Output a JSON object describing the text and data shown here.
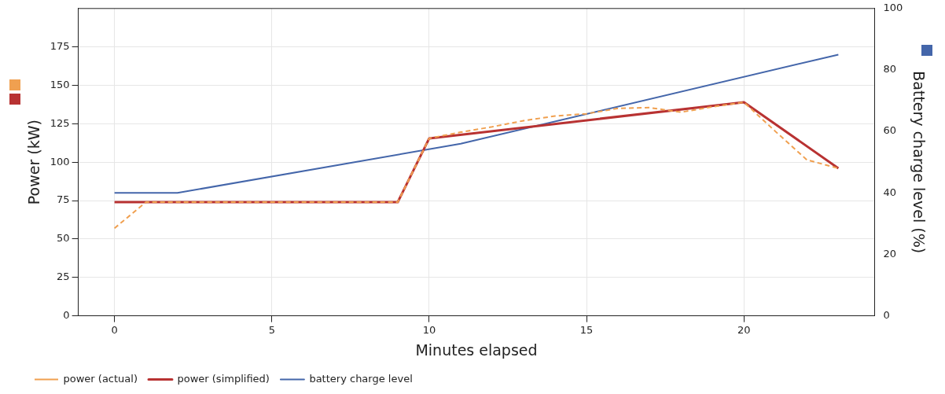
{
  "chart_data": {
    "type": "line",
    "xlabel": "Minutes elapsed",
    "ylabel": "Power (kW)",
    "y2label": "Battery charge level (%)",
    "xlim": [
      -1.15,
      24.15
    ],
    "xticks": [
      0,
      5,
      10,
      15,
      20
    ],
    "ylim": [
      0,
      200
    ],
    "yticks": [
      0,
      25,
      50,
      75,
      100,
      125,
      150,
      175
    ],
    "y2lim": [
      0,
      100
    ],
    "y2ticks": [
      0,
      20,
      40,
      60,
      80,
      100
    ],
    "grid": true,
    "legend": "bottom left",
    "series": [
      {
        "name": "power (actual)",
        "color": "#f0a050",
        "line_style": "dashed",
        "x": [
          0,
          1,
          9,
          10,
          11,
          12,
          13,
          14,
          15,
          16,
          17,
          18,
          19,
          20,
          21,
          22,
          23
        ],
        "values": [
          57,
          74,
          74,
          115.5,
          119.5,
          123,
          127,
          130,
          131.5,
          135,
          135.5,
          132.5,
          136,
          139,
          120,
          101.5,
          96
        ]
      },
      {
        "name": "power (simplified)",
        "color": "#b83232",
        "line_style": "solid",
        "x": [
          0,
          9,
          10,
          20,
          23
        ],
        "values": [
          74,
          74,
          115.5,
          139,
          96
        ]
      },
      {
        "name": "battery charge level",
        "color": "#4466aa",
        "line_style": "solid",
        "axis": "y2",
        "x": [
          0,
          2,
          11,
          23
        ],
        "values": [
          40,
          40,
          56,
          85
        ]
      }
    ]
  }
}
